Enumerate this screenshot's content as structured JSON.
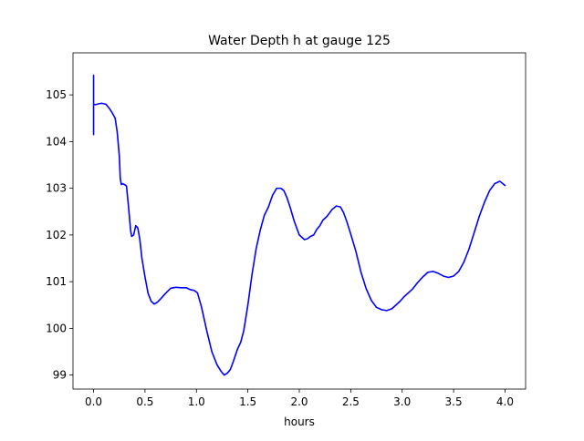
{
  "chart_data": {
    "type": "line",
    "title": "Water Depth h at gauge 125",
    "xlabel": "hours",
    "ylabel": "",
    "xlim": [
      -0.2,
      4.2
    ],
    "ylim": [
      98.7,
      105.9
    ],
    "xticks": [
      0.0,
      0.5,
      1.0,
      1.5,
      2.0,
      2.5,
      3.0,
      3.5,
      4.0
    ],
    "xtick_labels": [
      "0.0",
      "0.5",
      "1.0",
      "1.5",
      "2.0",
      "2.5",
      "3.0",
      "3.5",
      "4.0"
    ],
    "yticks": [
      99,
      100,
      101,
      102,
      103,
      104,
      105
    ],
    "ytick_labels": [
      "99",
      "100",
      "101",
      "102",
      "103",
      "104",
      "105"
    ],
    "grid": false,
    "series": [
      {
        "color": "#0000ff",
        "x": [
          0.0,
          0.0,
          0.0,
          0.0,
          0.02,
          0.05,
          0.08,
          0.12,
          0.15,
          0.18,
          0.21,
          0.23,
          0.25,
          0.26,
          0.27,
          0.28,
          0.3,
          0.32,
          0.34,
          0.36,
          0.37,
          0.39,
          0.41,
          0.43,
          0.45,
          0.47,
          0.5,
          0.53,
          0.56,
          0.59,
          0.62,
          0.66,
          0.7,
          0.75,
          0.8,
          0.85,
          0.9,
          0.94,
          0.98,
          1.01,
          1.05,
          1.1,
          1.15,
          1.2,
          1.24,
          1.27,
          1.3,
          1.33,
          1.36,
          1.4,
          1.43,
          1.46,
          1.5,
          1.54,
          1.58,
          1.62,
          1.66,
          1.7,
          1.74,
          1.78,
          1.82,
          1.85,
          1.88,
          1.91,
          1.95,
          2.0,
          2.05,
          2.08,
          2.11,
          2.14,
          2.17,
          2.2,
          2.23,
          2.27,
          2.32,
          2.36,
          2.4,
          2.43,
          2.46,
          2.5,
          2.55,
          2.6,
          2.65,
          2.7,
          2.75,
          2.8,
          2.85,
          2.9,
          2.94,
          2.98,
          3.02,
          3.06,
          3.1,
          3.15,
          3.2,
          3.25,
          3.3,
          3.35,
          3.4,
          3.45,
          3.5,
          3.55,
          3.6,
          3.65,
          3.7,
          3.75,
          3.8,
          3.85,
          3.9,
          3.95,
          4.0
        ],
        "y": [
          104.15,
          105.42,
          104.15,
          104.8,
          104.79,
          104.81,
          104.82,
          104.8,
          104.72,
          104.62,
          104.5,
          104.2,
          103.7,
          103.2,
          103.08,
          103.1,
          103.08,
          103.05,
          102.6,
          102.1,
          101.97,
          102.0,
          102.2,
          102.15,
          101.9,
          101.5,
          101.1,
          100.75,
          100.58,
          100.52,
          100.56,
          100.65,
          100.75,
          100.86,
          100.88,
          100.87,
          100.87,
          100.83,
          100.81,
          100.76,
          100.45,
          99.95,
          99.5,
          99.22,
          99.08,
          99.0,
          99.04,
          99.12,
          99.3,
          99.56,
          99.7,
          99.95,
          100.5,
          101.15,
          101.7,
          102.1,
          102.42,
          102.6,
          102.85,
          103.0,
          103.0,
          102.95,
          102.8,
          102.6,
          102.3,
          102.0,
          101.9,
          101.92,
          101.97,
          102.0,
          102.12,
          102.2,
          102.32,
          102.4,
          102.55,
          102.62,
          102.6,
          102.48,
          102.3,
          102.02,
          101.65,
          101.2,
          100.85,
          100.6,
          100.45,
          100.4,
          100.38,
          100.42,
          100.5,
          100.58,
          100.68,
          100.76,
          100.84,
          100.98,
          101.1,
          101.2,
          101.22,
          101.18,
          101.12,
          101.09,
          101.12,
          101.22,
          101.42,
          101.7,
          102.05,
          102.4,
          102.7,
          102.95,
          103.1,
          103.15,
          103.06
        ]
      }
    ]
  }
}
